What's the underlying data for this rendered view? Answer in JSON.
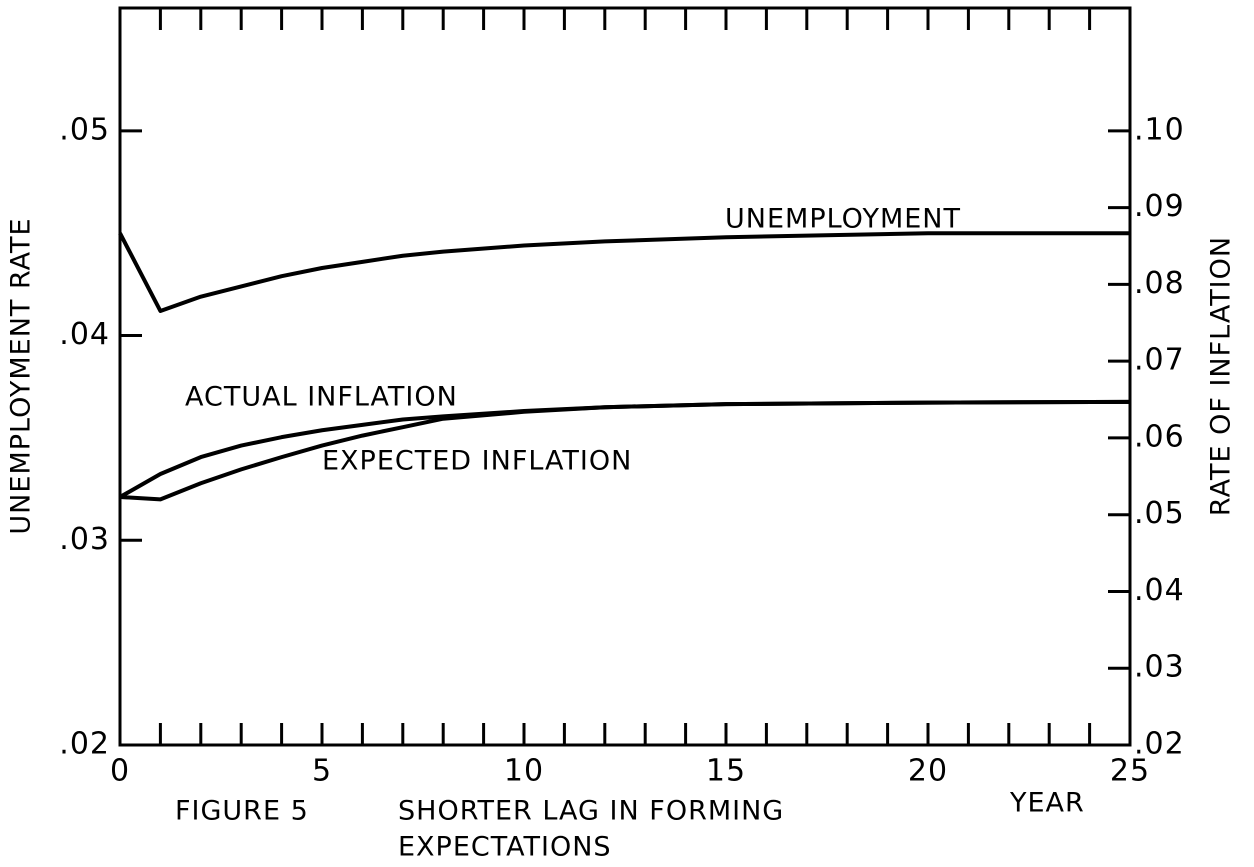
{
  "chart_data": {
    "type": "line",
    "title": "FIGURE 5",
    "subtitle": [
      "SHORTER LAG IN FORMING",
      "EXPECTATIONS"
    ],
    "xlabel": "YEAR",
    "ylabel": "UNEMPLOYMENT RATE",
    "y2label": "RATE OF INFLATION",
    "annotations": [
      "UNEMPLOYMENT",
      "ACTUAL INFLATION",
      "EXPECTED INFLATION"
    ],
    "x": [
      0,
      1,
      2,
      3,
      4,
      5,
      6,
      7,
      8,
      10,
      12,
      15,
      20,
      25
    ],
    "series": [
      {
        "name": "UNEMPLOYMENT",
        "color": "#000000",
        "axis": "y",
        "values": [
          0.045,
          0.0412,
          0.0419,
          0.0424,
          0.0429,
          0.0433,
          0.0436,
          0.0439,
          0.0441,
          0.0444,
          0.0446,
          0.0448,
          0.045,
          0.045
        ]
      },
      {
        "name": "ACTUAL INFLATION",
        "color": "#000000",
        "axis": "y2",
        "values": [
          0.0523,
          0.0553,
          0.0575,
          0.059,
          0.0601,
          0.061,
          0.0617,
          0.0624,
          0.0628,
          0.0635,
          0.064,
          0.0644,
          0.0646,
          0.0647
        ]
      },
      {
        "name": "EXPECTED INFLATION",
        "color": "#000000",
        "axis": "y2",
        "values": [
          0.0523,
          0.052,
          0.0541,
          0.0559,
          0.0575,
          0.059,
          0.0603,
          0.0614,
          0.0625,
          0.0634,
          0.064,
          0.0644,
          0.0646,
          0.0647
        ]
      }
    ],
    "xlim": [
      0,
      25
    ],
    "xticks": [
      0,
      5,
      10,
      15,
      20,
      25
    ],
    "xminorticks": [
      0,
      1,
      2,
      3,
      4,
      5,
      6,
      7,
      8,
      9,
      10,
      11,
      12,
      13,
      14,
      15,
      16,
      17,
      18,
      19,
      20,
      21,
      22,
      23,
      24,
      25
    ],
    "ylim": [
      0.02,
      0.056
    ],
    "yticks": [
      {
        "value": 0.02,
        "label": ".02"
      },
      {
        "value": 0.03,
        "label": ".03"
      },
      {
        "value": 0.04,
        "label": ".04"
      },
      {
        "value": 0.05,
        "label": ".05"
      }
    ],
    "y2lim": [
      0.02,
      0.116
    ],
    "y2ticks": [
      {
        "value": 0.02,
        "label": ".02"
      },
      {
        "value": 0.03,
        "label": ".03"
      },
      {
        "value": 0.04,
        "label": ".04"
      },
      {
        "value": 0.05,
        "label": ".05"
      },
      {
        "value": 0.06,
        "label": ".06"
      },
      {
        "value": 0.07,
        "label": ".07"
      },
      {
        "value": 0.08,
        "label": ".08"
      },
      {
        "value": 0.09,
        "label": ".09"
      },
      {
        "value": 0.1,
        "label": ".10"
      }
    ],
    "grid": false
  }
}
